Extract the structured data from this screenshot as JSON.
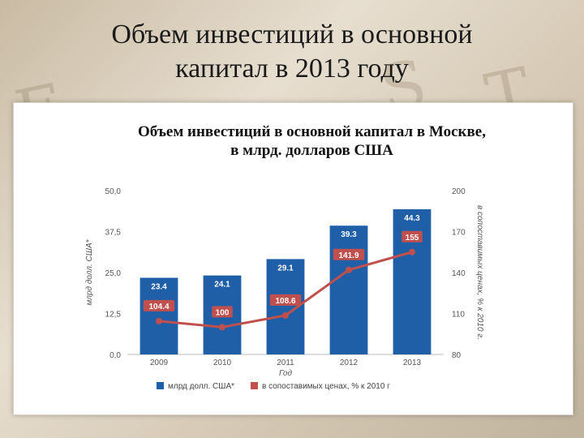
{
  "slide": {
    "title_line1": "Объем инвестиций в основной",
    "title_line2": "капитал в 2013 году"
  },
  "chart_data": {
    "type": "bar",
    "title_line1": "Объем инвестиций в основной капитал в Москве,",
    "title_line2": "в млрд. долларов США",
    "categories": [
      "2009",
      "2010",
      "2011",
      "2012",
      "2013"
    ],
    "xlabel": "Год",
    "ylabel": "млрд долл. США*",
    "ylabel_right": "в сопоставимых ценах, % к 2010 г.",
    "ylim": [
      0,
      50
    ],
    "ylim_right": [
      80,
      200
    ],
    "yticks": [
      "0,0",
      "12,5",
      "25,0",
      "37,5",
      "50,0"
    ],
    "yticks_right": [
      "80",
      "110",
      "140",
      "170",
      "200"
    ],
    "grid": false,
    "legend_position": "bottom",
    "series": [
      {
        "name": "млрд долл. США*",
        "kind": "bar",
        "axis": "left",
        "color": "#1f5fa8",
        "values": [
          23.4,
          24.1,
          29.1,
          39.3,
          44.3
        ],
        "labels": [
          "23.4",
          "24.1",
          "29.1",
          "39.3",
          "44.3"
        ]
      },
      {
        "name": "в сопоставимых ценах, % к 2010 г",
        "kind": "line",
        "axis": "right",
        "color": "#c0504d",
        "values": [
          104.4,
          100,
          108.6,
          141.9,
          155
        ],
        "labels": [
          "104.4",
          "100",
          "108.6",
          "141.9",
          "155"
        ]
      }
    ]
  }
}
